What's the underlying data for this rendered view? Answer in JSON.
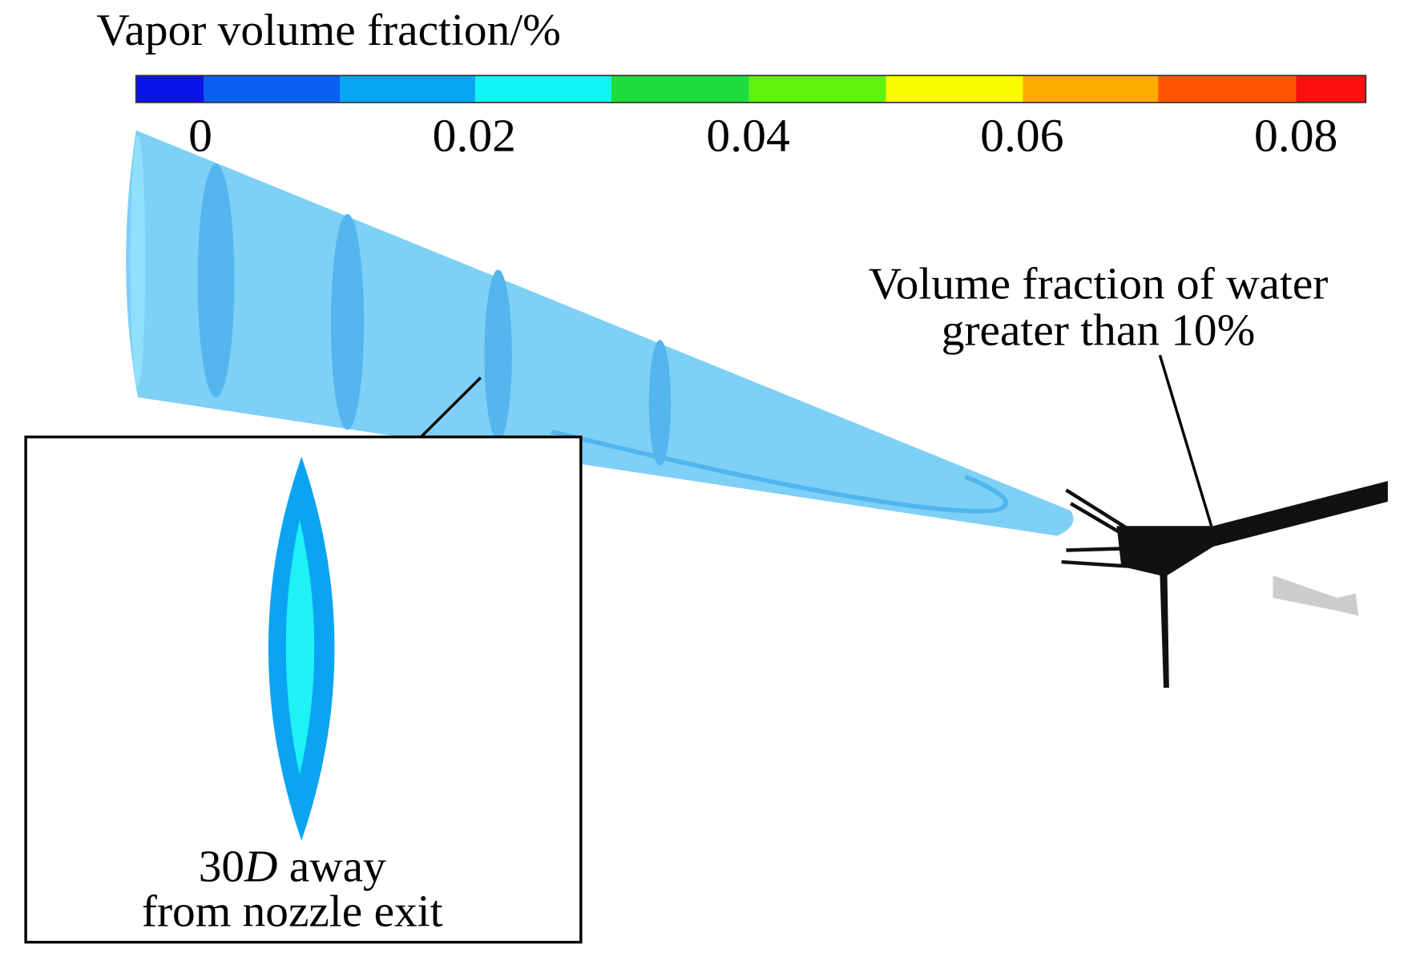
{
  "colorbar": {
    "title": "Vapor volume fraction/%",
    "ticks": [
      0,
      0.02,
      0.04,
      0.06,
      0.08
    ]
  },
  "annotation": {
    "lines": [
      "Volume fraction of water",
      "greater than 10%"
    ]
  },
  "inset": {
    "caption_line1": [
      "30",
      "D",
      " away"
    ],
    "caption_line2": "from nozzle exit"
  }
}
